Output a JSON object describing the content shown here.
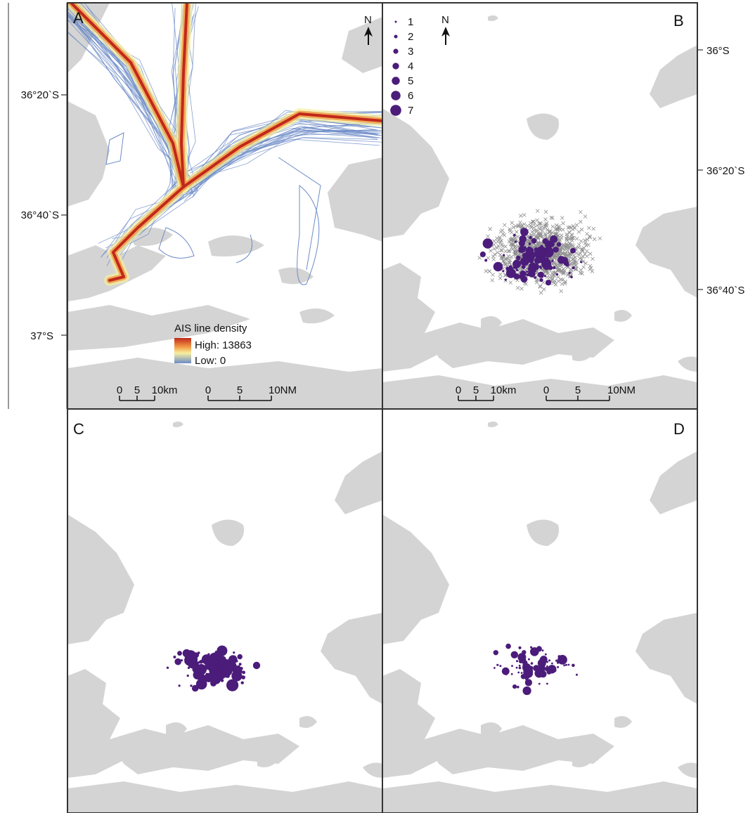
{
  "panels": [
    {
      "letter": "A"
    },
    {
      "letter": "B"
    },
    {
      "letter": "C"
    },
    {
      "letter": "D"
    }
  ],
  "north_arrow": {
    "label": "N"
  },
  "panel_a": {
    "lat_labels": [
      "36°20`S",
      "36°40`S",
      "37°S"
    ],
    "density_legend": {
      "title": "AIS line density",
      "high": "High: 13863",
      "low": "Low:  0",
      "colors": {
        "high": "#c0281c",
        "mid": "#f7efa0",
        "low": "#6c8bc7"
      }
    },
    "scale_km": {
      "ticks": [
        "0",
        "5",
        "10km"
      ]
    },
    "scale_nm": {
      "ticks": [
        "0",
        "5",
        "10NM"
      ]
    }
  },
  "panel_b": {
    "lat_labels": [
      "36°S",
      "36°20`S",
      "36°40`S"
    ],
    "size_legend": [
      {
        "label": "1"
      },
      {
        "label": "2"
      },
      {
        "label": "3"
      },
      {
        "label": "4"
      },
      {
        "label": "5"
      },
      {
        "label": "6"
      },
      {
        "label": "7"
      }
    ],
    "scale_km": {
      "ticks": [
        "0",
        "5",
        "10km"
      ]
    },
    "scale_nm": {
      "ticks": [
        "0",
        "5",
        "10NM"
      ]
    }
  },
  "colors": {
    "point": "#4b1c7a",
    "cross": "#8f8f8f",
    "land": "#d4d4d4"
  }
}
